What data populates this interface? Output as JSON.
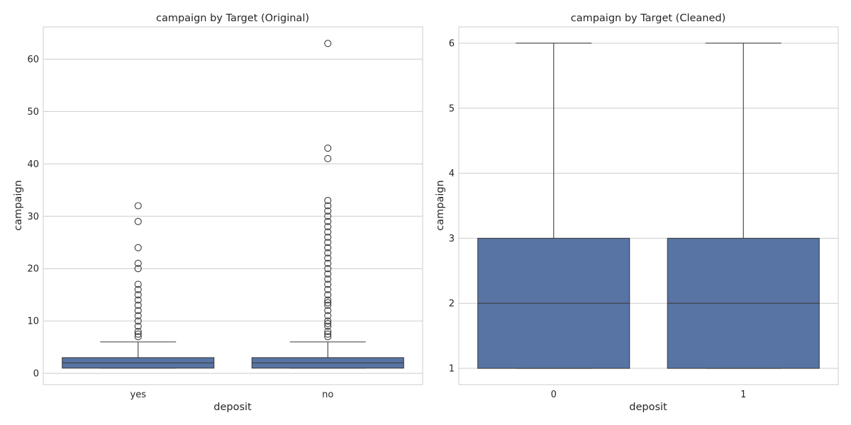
{
  "figure": {
    "panels": [
      {
        "title": "campaign by Target (Original)",
        "xlabel": "deposit",
        "ylabel": "campaign"
      },
      {
        "title": "campaign by Target (Cleaned)",
        "xlabel": "deposit",
        "ylabel": "campaign"
      }
    ]
  },
  "chart_data": [
    {
      "type": "box",
      "title": "campaign by Target (Original)",
      "xlabel": "deposit",
      "ylabel": "campaign",
      "ylim": [
        -2.15,
        66.15
      ],
      "yticks": [
        0,
        10,
        20,
        30,
        40,
        50,
        60
      ],
      "grid": "horizontal",
      "box_color": "#5874a5",
      "categories": [
        "yes",
        "no"
      ],
      "boxes": [
        {
          "category": "yes",
          "min": 1,
          "q1": 1,
          "median": 2,
          "q3": 3,
          "whisker_high": 6,
          "outliers": [
            7,
            7.5,
            8,
            9,
            10,
            11,
            12,
            13,
            14,
            15,
            16,
            17,
            20,
            21,
            24,
            29,
            32
          ]
        },
        {
          "category": "no",
          "min": 1,
          "q1": 1,
          "median": 2,
          "q3": 3,
          "whisker_high": 6,
          "outliers": [
            7,
            7.5,
            8,
            9,
            9.5,
            10,
            11,
            12,
            13,
            13.5,
            14,
            15,
            16,
            17,
            18,
            19,
            20,
            21,
            22,
            23,
            24,
            25,
            26,
            27,
            28,
            29,
            30,
            31,
            32,
            33,
            41,
            43,
            63
          ]
        }
      ]
    },
    {
      "type": "box",
      "title": "campaign by Target (Cleaned)",
      "xlabel": "deposit",
      "ylabel": "campaign",
      "ylim": [
        0.75,
        6.25
      ],
      "yticks": [
        1,
        2,
        3,
        4,
        5,
        6
      ],
      "grid": "horizontal",
      "box_color": "#5874a5",
      "categories": [
        "0",
        "1"
      ],
      "boxes": [
        {
          "category": "0",
          "min": 1,
          "q1": 1,
          "median": 2,
          "q3": 3,
          "whisker_high": 6,
          "outliers": []
        },
        {
          "category": "1",
          "min": 1,
          "q1": 1,
          "median": 2,
          "q3": 3,
          "whisker_high": 6,
          "outliers": []
        }
      ]
    }
  ]
}
